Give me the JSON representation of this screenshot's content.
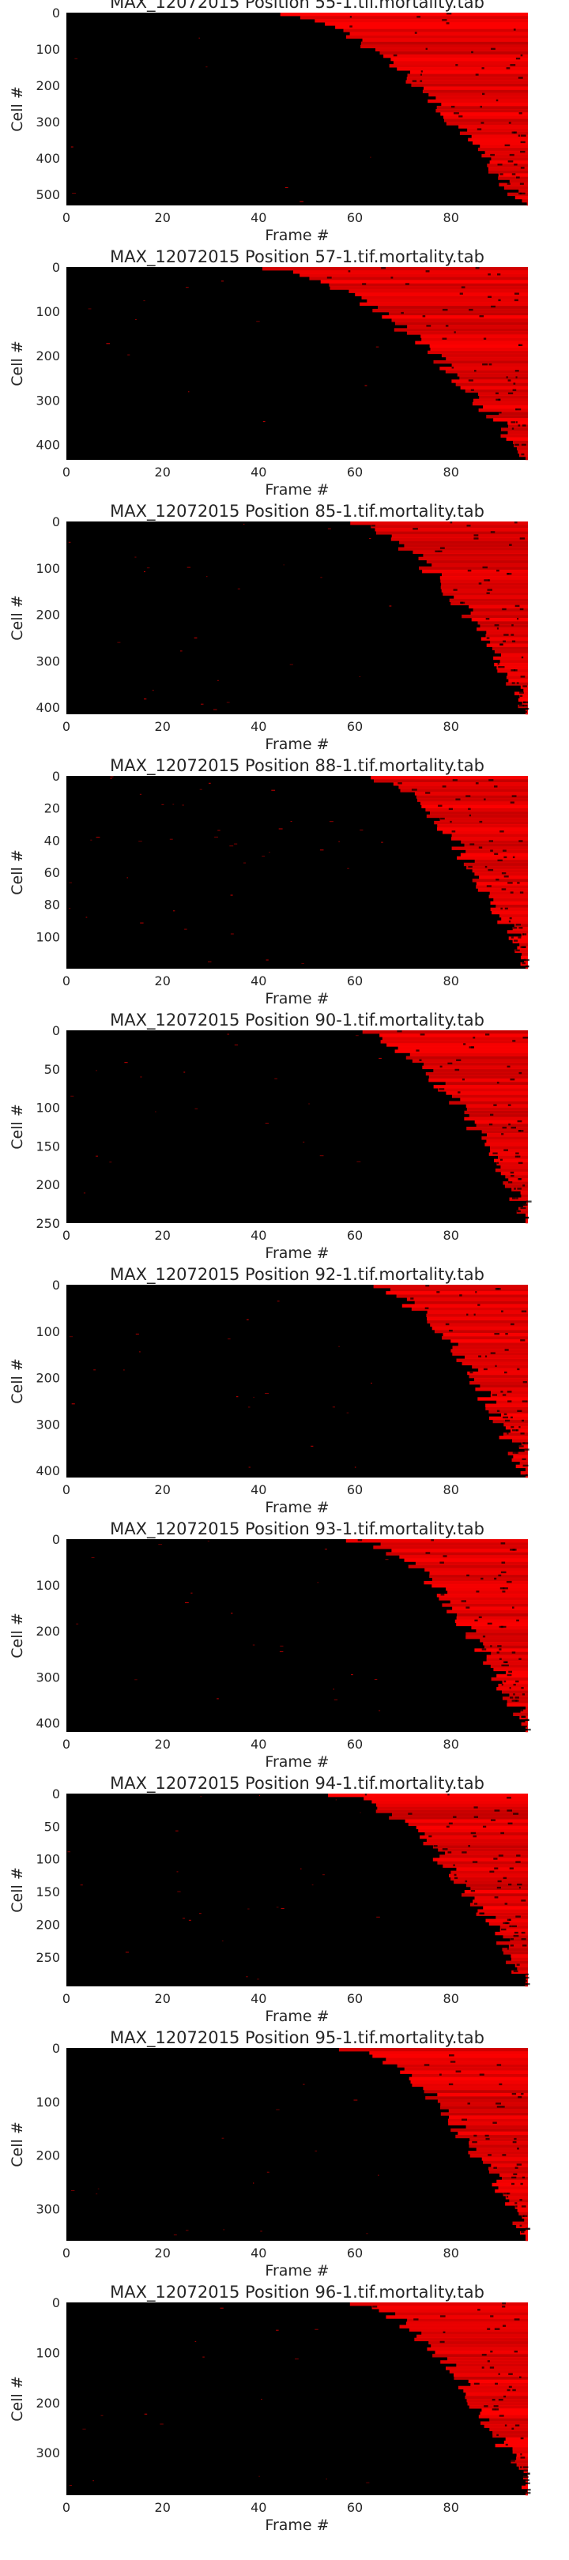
{
  "figure": {
    "background": "#ffffff",
    "heat_colors": {
      "dead": "#ff0000",
      "alive": "#000000"
    }
  },
  "chart_data": [
    {
      "type": "heatmap",
      "title": "MAX_12072015 Position 55-1.tif.mortality.tab",
      "xlabel": "Frame #",
      "ylabel": "Cell #",
      "xlim": [
        0,
        96
      ],
      "ylim": [
        530,
        0
      ],
      "xticks": [
        0,
        20,
        40,
        60,
        80
      ],
      "yticks": [
        0,
        100,
        200,
        300,
        400,
        500
      ],
      "n_cells": 530,
      "n_frames": 96,
      "onset_frame_range": [
        44,
        94
      ],
      "noise": 0.002,
      "grid": false,
      "legend": "none"
    },
    {
      "type": "heatmap",
      "title": "MAX_12072015 Position 57-1.tif.mortality.tab",
      "xlabel": "Frame #",
      "ylabel": "Cell #",
      "xlim": [
        0,
        96
      ],
      "ylim": [
        435,
        0
      ],
      "xticks": [
        0,
        20,
        40,
        60,
        80
      ],
      "yticks": [
        0,
        100,
        200,
        300,
        400
      ],
      "n_cells": 435,
      "n_frames": 96,
      "onset_frame_range": [
        40,
        96
      ],
      "noise": 0.003,
      "grid": false,
      "legend": "none"
    },
    {
      "type": "heatmap",
      "title": "MAX_12072015 Position 85-1.tif.mortality.tab",
      "xlabel": "Frame #",
      "ylabel": "Cell #",
      "xlim": [
        0,
        96
      ],
      "ylim": [
        415,
        0
      ],
      "xticks": [
        0,
        20,
        40,
        60,
        80
      ],
      "yticks": [
        0,
        100,
        200,
        300,
        400
      ],
      "n_cells": 415,
      "n_frames": 96,
      "onset_frame_range": [
        58,
        96
      ],
      "noise": 0.006,
      "grid": false,
      "legend": "none"
    },
    {
      "type": "heatmap",
      "title": "MAX_12072015 Position 88-1.tif.mortality.tab",
      "xlabel": "Frame #",
      "ylabel": "Cell #",
      "xlim": [
        0,
        96
      ],
      "ylim": [
        120,
        0
      ],
      "xticks": [
        0,
        20,
        40,
        60,
        80
      ],
      "yticks": [
        0,
        20,
        40,
        60,
        80,
        100
      ],
      "n_cells": 120,
      "n_frames": 96,
      "onset_frame_range": [
        62,
        96
      ],
      "noise": 0.01,
      "grid": false,
      "legend": "none"
    },
    {
      "type": "heatmap",
      "title": "MAX_12072015 Position 90-1.tif.mortality.tab",
      "xlabel": "Frame #",
      "ylabel": "Cell #",
      "xlim": [
        0,
        96
      ],
      "ylim": [
        250,
        0
      ],
      "xticks": [
        0,
        20,
        40,
        60,
        80
      ],
      "yticks": [
        0,
        50,
        100,
        150,
        200,
        250
      ],
      "n_cells": 250,
      "n_frames": 96,
      "onset_frame_range": [
        60,
        96
      ],
      "noise": 0.005,
      "grid": false,
      "legend": "none"
    },
    {
      "type": "heatmap",
      "title": "MAX_12072015 Position 92-1.tif.mortality.tab",
      "xlabel": "Frame #",
      "ylabel": "Cell #",
      "xlim": [
        0,
        96
      ],
      "ylim": [
        415,
        0
      ],
      "xticks": [
        0,
        20,
        40,
        60,
        80
      ],
      "yticks": [
        0,
        100,
        200,
        300,
        400
      ],
      "n_cells": 415,
      "n_frames": 96,
      "onset_frame_range": [
        62,
        96
      ],
      "noise": 0.005,
      "grid": false,
      "legend": "none"
    },
    {
      "type": "heatmap",
      "title": "MAX_12072015 Position 93-1.tif.mortality.tab",
      "xlabel": "Frame #",
      "ylabel": "Cell #",
      "xlim": [
        0,
        96
      ],
      "ylim": [
        420,
        0
      ],
      "xticks": [
        0,
        20,
        40,
        60,
        80
      ],
      "yticks": [
        0,
        100,
        200,
        300,
        400
      ],
      "n_cells": 420,
      "n_frames": 96,
      "onset_frame_range": [
        60,
        96
      ],
      "noise": 0.005,
      "grid": false,
      "legend": "none"
    },
    {
      "type": "heatmap",
      "title": "MAX_12072015 Position 94-1.tif.mortality.tab",
      "xlabel": "Frame #",
      "ylabel": "Cell #",
      "xlim": [
        0,
        96
      ],
      "ylim": [
        295,
        0
      ],
      "xticks": [
        0,
        20,
        40,
        60,
        80
      ],
      "yticks": [
        0,
        50,
        100,
        150,
        200,
        250
      ],
      "n_cells": 295,
      "n_frames": 96,
      "onset_frame_range": [
        56,
        96
      ],
      "noise": 0.006,
      "grid": false,
      "legend": "none"
    },
    {
      "type": "heatmap",
      "title": "MAX_12072015 Position 95-1.tif.mortality.tab",
      "xlabel": "Frame #",
      "ylabel": "Cell #",
      "xlim": [
        0,
        96
      ],
      "ylim": [
        360,
        0
      ],
      "xticks": [
        0,
        20,
        40,
        60,
        80
      ],
      "yticks": [
        0,
        100,
        200,
        300
      ],
      "n_cells": 360,
      "n_frames": 96,
      "onset_frame_range": [
        58,
        96
      ],
      "noise": 0.004,
      "grid": false,
      "legend": "none"
    },
    {
      "type": "heatmap",
      "title": "MAX_12072015 Position 96-1.tif.mortality.tab",
      "xlabel": "Frame #",
      "ylabel": "Cell #",
      "xlim": [
        0,
        96
      ],
      "ylim": [
        385,
        0
      ],
      "xticks": [
        0,
        20,
        40,
        60,
        80
      ],
      "yticks": [
        0,
        100,
        200,
        300
      ],
      "n_cells": 385,
      "n_frames": 96,
      "onset_frame_range": [
        60,
        96
      ],
      "noise": 0.004,
      "grid": false,
      "legend": "none"
    }
  ]
}
